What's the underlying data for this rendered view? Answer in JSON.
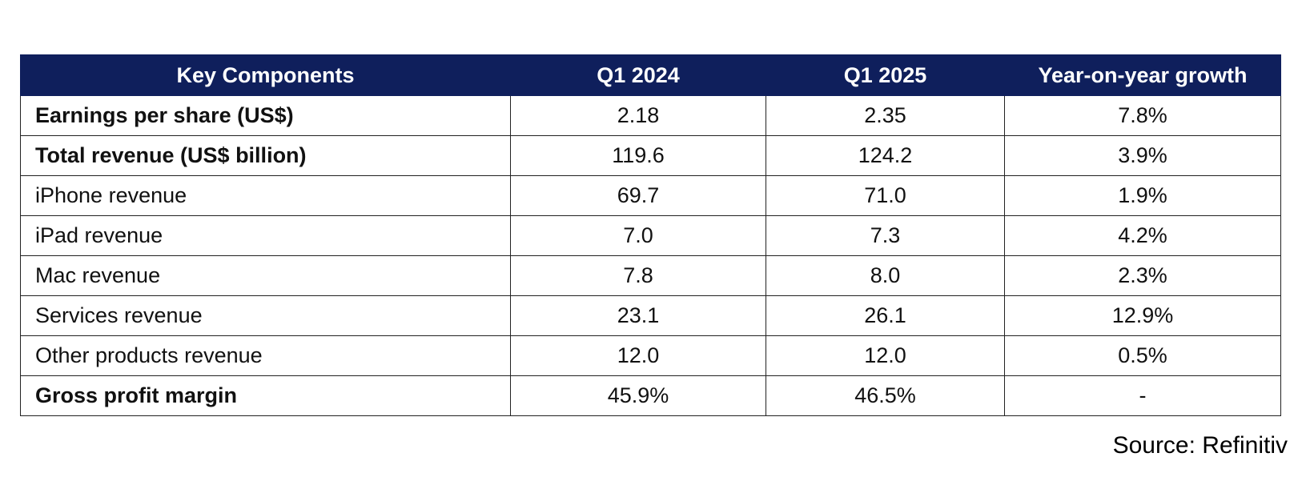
{
  "chart_data": {
    "type": "table",
    "columns": [
      "Key Components",
      "Q1 2024",
      "Q1 2025",
      "Year-on-year growth"
    ],
    "rows": [
      {
        "label": "Earnings per share (US$)",
        "bold": true,
        "values": [
          "2.18",
          "2.35",
          "7.8%"
        ]
      },
      {
        "label": "Total revenue (US$ billion)",
        "bold": true,
        "values": [
          "119.6",
          "124.2",
          "3.9%"
        ]
      },
      {
        "label": "iPhone revenue",
        "bold": false,
        "values": [
          "69.7",
          "71.0",
          "1.9%"
        ]
      },
      {
        "label": "iPad revenue",
        "bold": false,
        "values": [
          "7.0",
          "7.3",
          "4.2%"
        ]
      },
      {
        "label": "Mac revenue",
        "bold": false,
        "values": [
          "7.8",
          "8.0",
          "2.3%"
        ]
      },
      {
        "label": "Services revenue",
        "bold": false,
        "values": [
          "23.1",
          "26.1",
          "12.9%"
        ]
      },
      {
        "label": "Other products revenue",
        "bold": false,
        "values": [
          "12.0",
          "12.0",
          "0.5%"
        ]
      },
      {
        "label": "Gross profit margin",
        "bold": true,
        "values": [
          "45.9%",
          "46.5%",
          "-"
        ]
      }
    ],
    "header_color": "#0f1f5c"
  },
  "source": "Source: Refinitiv"
}
